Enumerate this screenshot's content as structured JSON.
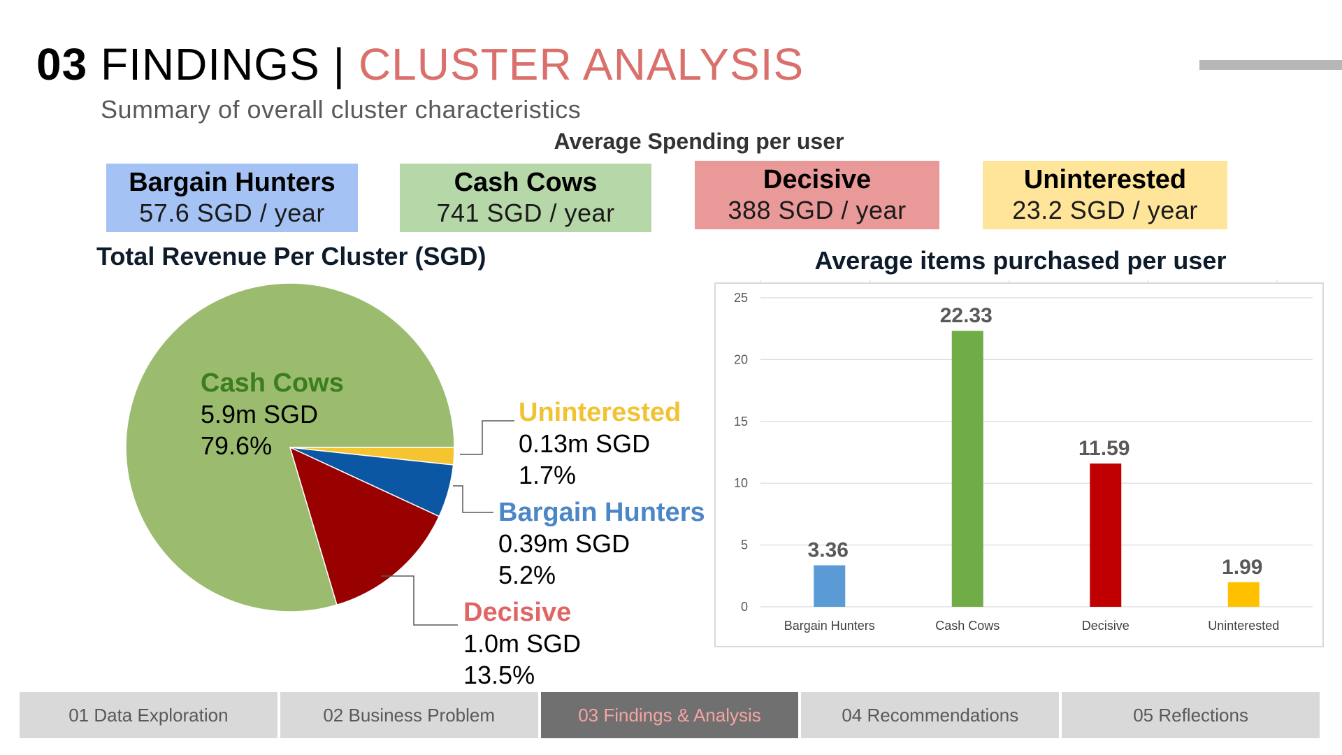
{
  "header": {
    "number": "03",
    "title_main": "FINDINGS",
    "separator": "|",
    "title_accent": "CLUSTER ANALYSIS",
    "subtitle": "Summary of overall cluster characteristics"
  },
  "spending": {
    "heading": "Average Spending per user",
    "boxes": [
      {
        "name": "Bargain Hunters",
        "value": "57.6 SGD / year",
        "color": "#a4c2f4"
      },
      {
        "name": "Cash Cows",
        "value": "741 SGD / year",
        "color": "#b6d7a8"
      },
      {
        "name": "Decisive",
        "value": "388 SGD / year",
        "color": "#ea9999"
      },
      {
        "name": "Uninterested",
        "value": "23.2 SGD / year",
        "color": "#ffe599"
      }
    ]
  },
  "chart_data": [
    {
      "type": "pie",
      "title": "Total Revenue Per Cluster (SGD)",
      "slices": [
        {
          "name": "Cash Cows",
          "value": 79.6,
          "amount": "5.9m SGD",
          "percent": "79.6%",
          "color": "#9bbb6e",
          "label_color": "#3b7d1f"
        },
        {
          "name": "Uninterested",
          "value": 1.7,
          "amount": "0.13m SGD",
          "percent": "1.7%",
          "color": "#f7c431",
          "label_color": "#f1c232"
        },
        {
          "name": "Bargain Hunters",
          "value": 5.2,
          "amount": "0.39m SGD",
          "percent": "5.2%",
          "color": "#0b57a4",
          "label_color": "#4a86c8"
        },
        {
          "name": "Decisive",
          "value": 13.5,
          "amount": "1.0m SGD",
          "percent": "13.5%",
          "color": "#990000",
          "label_color": "#e06666"
        }
      ]
    },
    {
      "type": "bar",
      "title": "Average items purchased per user",
      "categories": [
        "Bargain Hunters",
        "Cash Cows",
        "Decisive",
        "Uninterested"
      ],
      "values": [
        3.36,
        22.33,
        11.59,
        1.99
      ],
      "value_labels": [
        "3.36",
        "22.33",
        "11.59",
        "1.99"
      ],
      "colors": [
        "#5b9bd5",
        "#70ad47",
        "#c00000",
        "#ffc000"
      ],
      "ylim": [
        0,
        25
      ],
      "yticks": [
        "0",
        "5",
        "10",
        "15",
        "20",
        "25"
      ],
      "grid": true
    }
  ],
  "nav": {
    "items": [
      {
        "label": "01 Data Exploration",
        "active": false
      },
      {
        "label": "02 Business Problem",
        "active": false
      },
      {
        "label": "03 Findings & Analysis",
        "active": true
      },
      {
        "label": "04 Recommendations",
        "active": false
      },
      {
        "label": "05 Reflections",
        "active": false
      }
    ]
  }
}
